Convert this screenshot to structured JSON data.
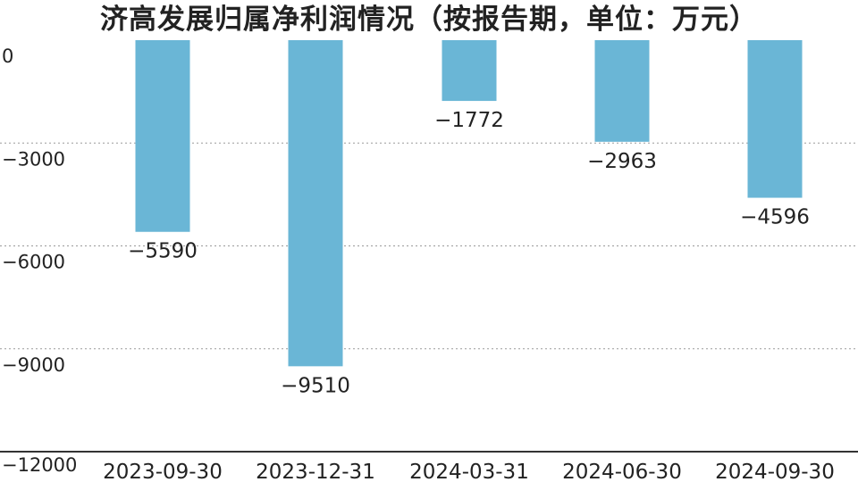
{
  "chart_data": {
    "type": "bar",
    "title": "济高发展归属净利润情况（按报告期，单位：万元）",
    "categories": [
      "2023-09-30",
      "2023-12-31",
      "2024-03-31",
      "2024-06-30",
      "2024-09-30"
    ],
    "values": [
      -5590,
      -9510,
      -1772,
      -2963,
      -4596
    ],
    "value_labels": [
      "−5590",
      "−9510",
      "−1772",
      "−2963",
      "−4596"
    ],
    "yticks": [
      0,
      -3000,
      -6000,
      -9000,
      -12000
    ],
    "ytick_labels": [
      "0",
      "−3000",
      "−6000",
      "−9000",
      "−12000"
    ],
    "ylim": [
      -12000,
      0
    ],
    "grid": true,
    "bar_color": "#6ab6d6"
  }
}
